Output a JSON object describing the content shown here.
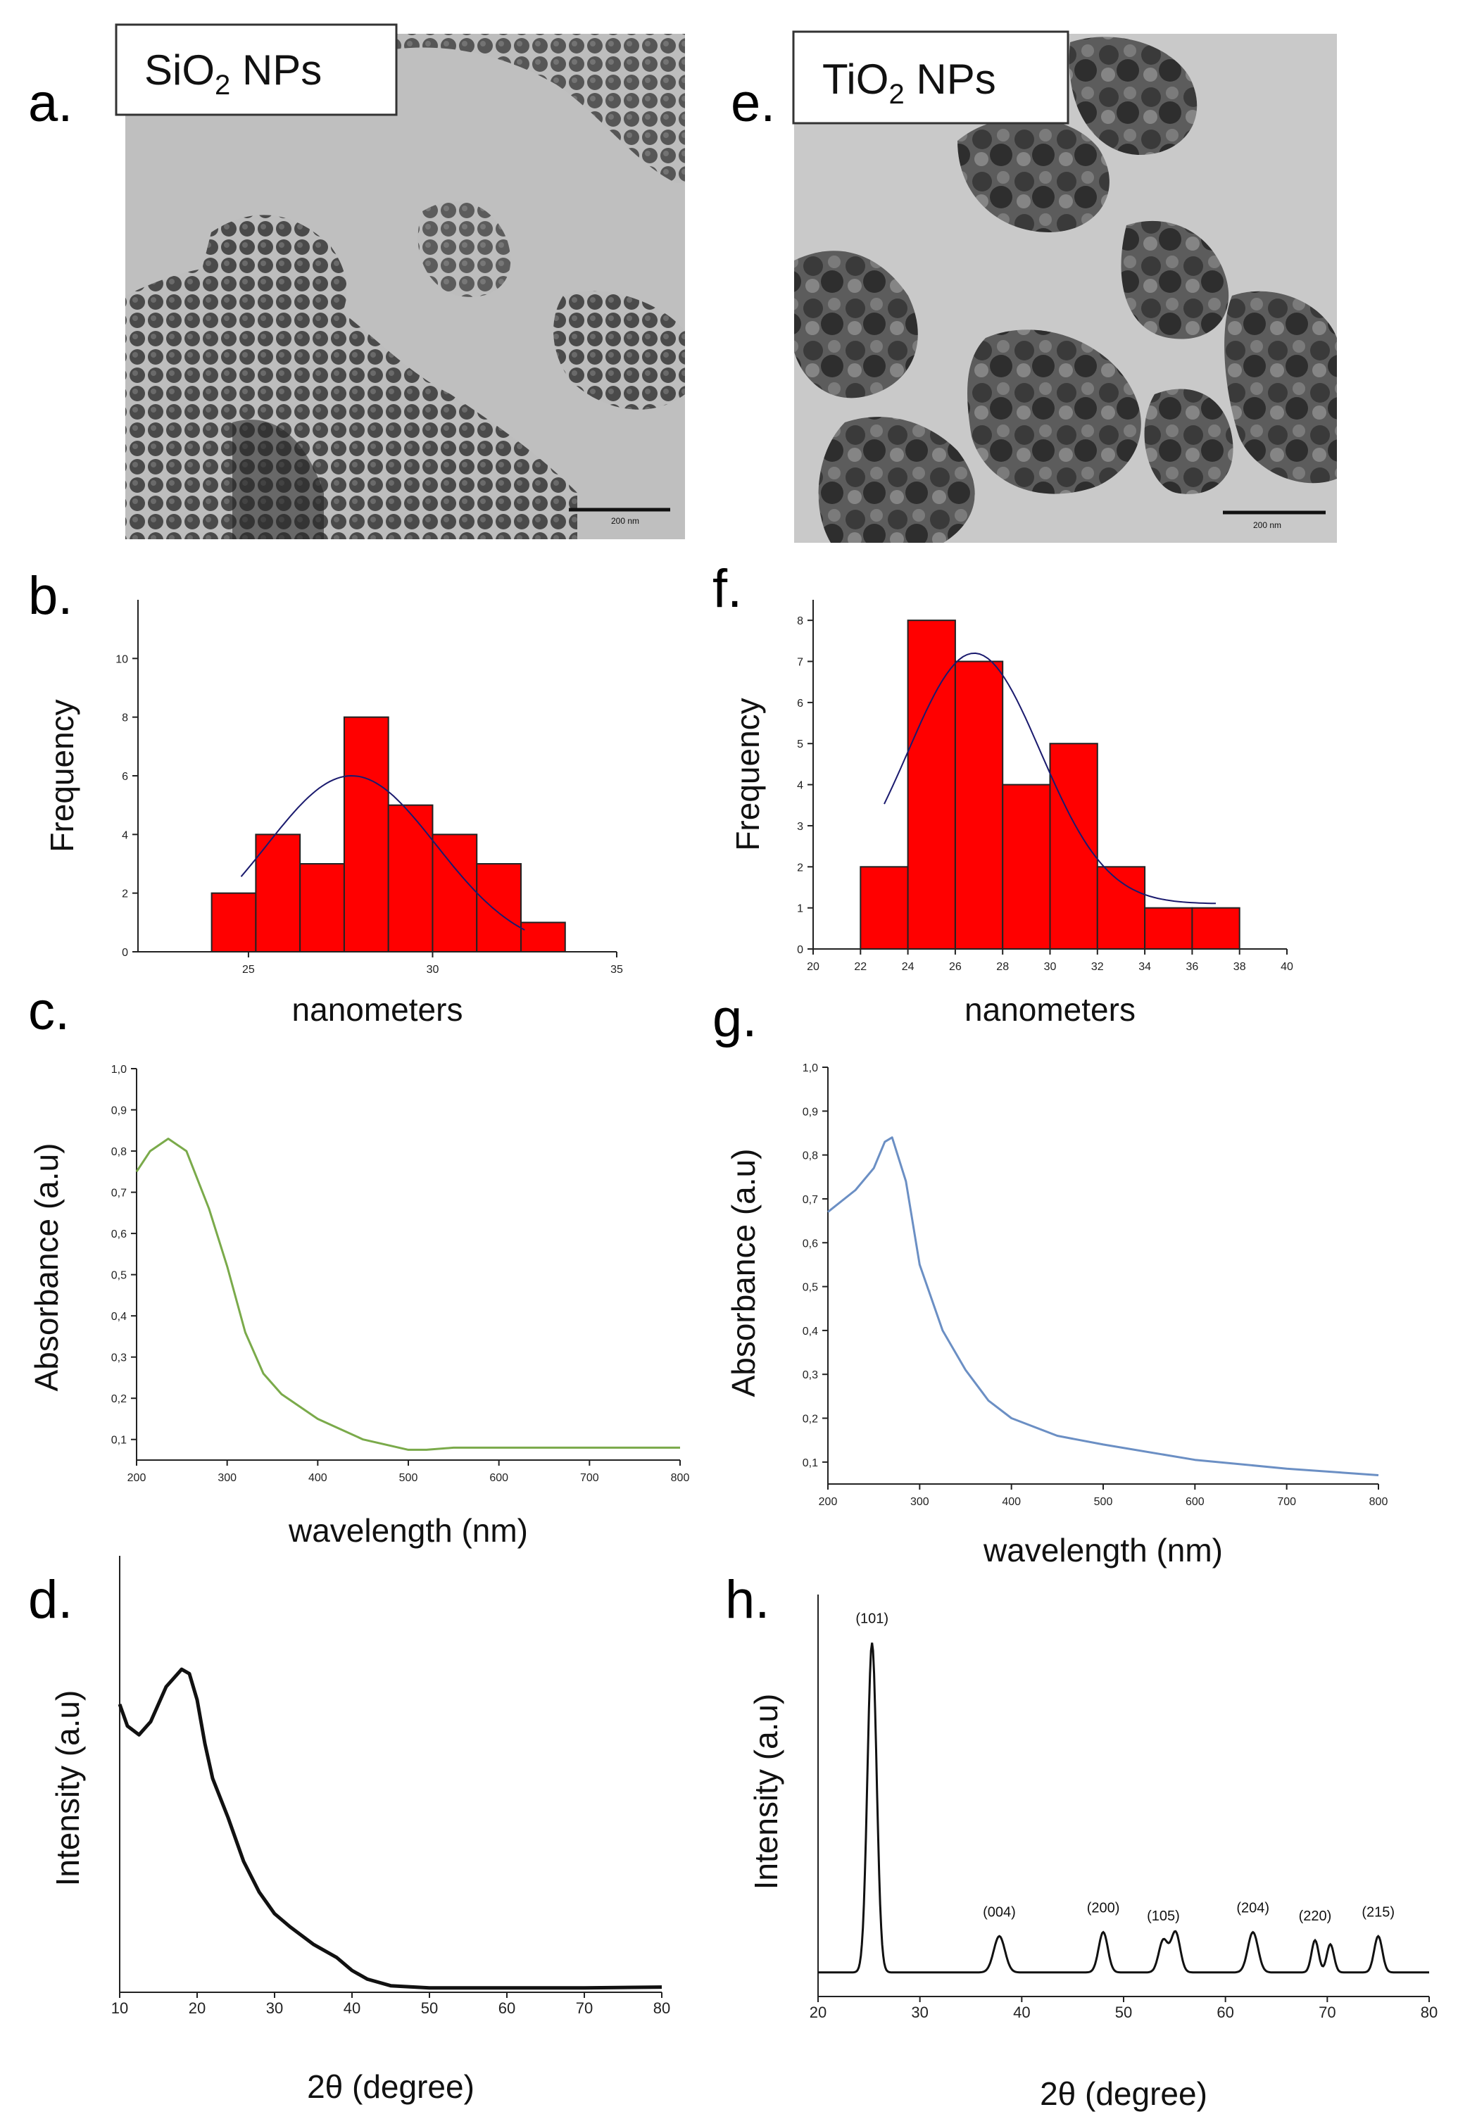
{
  "labels": {
    "a": "a.",
    "b": "b.",
    "c": "c.",
    "d": "d.",
    "e": "e.",
    "f": "f.",
    "g": "g.",
    "h": "h."
  },
  "tem": {
    "sio2": {
      "prefix": "SiO",
      "sub": "2",
      "suffix": " NPs",
      "scale": "200 nm"
    },
    "tio2": {
      "prefix": "TiO",
      "sub": "2",
      "suffix": " NPs",
      "scale": "200 nm"
    }
  },
  "colors": {
    "bar": "#ff0000",
    "fit": "#1a1a6e",
    "uv_sio2": "#7aaa4a",
    "uv_tio2": "#6b8fc4",
    "xrd": "#111111"
  },
  "chart_data": [
    {
      "id": "b",
      "type": "bar",
      "title": "",
      "xlabel": "nanometers",
      "ylabel": "Frequency",
      "xlim": [
        22,
        35
      ],
      "ylim": [
        0,
        12
      ],
      "xticks": [
        25,
        30,
        35
      ],
      "yticks": [
        0,
        2,
        4,
        6,
        8,
        10
      ],
      "bin_width": 1.2,
      "bins": [
        24.6,
        25.8,
        27.0,
        28.2,
        29.4,
        30.6,
        31.8
      ],
      "values": [
        2,
        4,
        3,
        8,
        5,
        4,
        3
      ],
      "extra_bin": {
        "x": 33.0,
        "value": 1
      },
      "fit": {
        "type": "normal",
        "mean": 27.8,
        "amplitude": 6.0,
        "sigma": 2.3,
        "range": [
          24.8,
          32.5
        ]
      }
    },
    {
      "id": "f",
      "type": "bar",
      "title": "",
      "xlabel": "nanometers",
      "ylabel": "Frequency",
      "xlim": [
        20,
        40
      ],
      "ylim": [
        0,
        8.5
      ],
      "xticks": [
        20,
        22,
        24,
        26,
        28,
        30,
        32,
        34,
        36,
        38,
        40
      ],
      "yticks": [
        0,
        1,
        2,
        3,
        4,
        5,
        6,
        7,
        8
      ],
      "bin_width": 2,
      "bins": [
        23,
        25,
        27,
        29,
        31,
        33,
        35,
        37
      ],
      "values": [
        2,
        8,
        7,
        4,
        5,
        2,
        1,
        1
      ],
      "fit": {
        "type": "normal",
        "mean": 26.8,
        "amplitude": 6.1,
        "sigma": 2.8,
        "baseline": 1.1,
        "range": [
          23,
          37
        ]
      }
    },
    {
      "id": "c",
      "type": "line",
      "title": "",
      "xlabel": "wavelength (nm)",
      "ylabel": "Absorbance (a.u)",
      "xlim": [
        200,
        800
      ],
      "ylim": [
        0.05,
        1.0
      ],
      "xticks": [
        200,
        300,
        400,
        500,
        600,
        700,
        800
      ],
      "yticks": [
        0.1,
        0.2,
        0.3,
        0.4,
        0.5,
        0.6,
        0.7,
        0.8,
        0.9,
        1.0
      ],
      "ytick_labels": [
        "0,1",
        "0,2",
        "0,3",
        "0,4",
        "0,5",
        "0,6",
        "0,7",
        "0,8",
        "0,9",
        "1,0"
      ],
      "series": [
        {
          "name": "SiO2",
          "x": [
            200,
            215,
            235,
            255,
            280,
            300,
            320,
            340,
            360,
            400,
            450,
            500,
            520,
            550,
            600,
            700,
            800
          ],
          "y": [
            0.75,
            0.8,
            0.83,
            0.8,
            0.66,
            0.52,
            0.36,
            0.26,
            0.21,
            0.15,
            0.1,
            0.075,
            0.075,
            0.08,
            0.08,
            0.08,
            0.08
          ]
        }
      ]
    },
    {
      "id": "g",
      "type": "line",
      "title": "",
      "xlabel": "wavelength (nm)",
      "ylabel": "Absorbance (a.u)",
      "xlim": [
        200,
        800
      ],
      "ylim": [
        0.05,
        1.0
      ],
      "xticks": [
        200,
        300,
        400,
        500,
        600,
        700,
        800
      ],
      "yticks": [
        0.1,
        0.2,
        0.3,
        0.4,
        0.5,
        0.6,
        0.7,
        0.8,
        0.9,
        1.0
      ],
      "ytick_labels": [
        "0,1",
        "0,2",
        "0,3",
        "0,4",
        "0,5",
        "0,6",
        "0,7",
        "0,8",
        "0,9",
        "1,0"
      ],
      "series": [
        {
          "name": "TiO2",
          "x": [
            200,
            230,
            250,
            262,
            270,
            285,
            300,
            325,
            350,
            375,
            400,
            450,
            500,
            600,
            700,
            800
          ],
          "y": [
            0.67,
            0.72,
            0.77,
            0.83,
            0.84,
            0.74,
            0.55,
            0.4,
            0.31,
            0.24,
            0.2,
            0.16,
            0.14,
            0.105,
            0.085,
            0.07
          ]
        }
      ]
    },
    {
      "id": "d",
      "type": "line",
      "title": "",
      "xlabel": "2θ (degree)",
      "ylabel": "Intensity (a.u)",
      "xlim": [
        10,
        80
      ],
      "ylim": [
        0,
        1.0
      ],
      "xticks": [
        10,
        20,
        30,
        40,
        50,
        60,
        70,
        80
      ],
      "series": [
        {
          "name": "SiO2",
          "x": [
            10,
            11,
            12.5,
            14,
            16,
            18,
            19,
            20,
            21,
            22,
            24,
            26,
            28,
            30,
            32,
            35,
            38,
            40,
            42,
            45,
            50,
            60,
            70,
            80
          ],
          "y": [
            0.66,
            0.61,
            0.59,
            0.62,
            0.7,
            0.74,
            0.73,
            0.67,
            0.57,
            0.49,
            0.4,
            0.3,
            0.23,
            0.18,
            0.15,
            0.11,
            0.08,
            0.05,
            0.03,
            0.015,
            0.01,
            0.01,
            0.01,
            0.012
          ]
        }
      ]
    },
    {
      "id": "h",
      "type": "line",
      "title": "",
      "xlabel": "2θ (degree)",
      "ylabel": "Intensity (a.u)",
      "xlim": [
        20,
        80
      ],
      "ylim": [
        0,
        1.0
      ],
      "xticks": [
        20,
        30,
        40,
        50,
        60,
        70,
        80
      ],
      "baseline": 0.06,
      "peaks": [
        {
          "x": 25.3,
          "height": 0.82,
          "width": 0.45,
          "label": "(101)"
        },
        {
          "x": 37.8,
          "height": 0.09,
          "width": 0.55,
          "label": "(004)"
        },
        {
          "x": 48.0,
          "height": 0.1,
          "width": 0.45,
          "label": "(200)"
        },
        {
          "x": 53.9,
          "height": 0.08,
          "width": 0.45,
          "label": "(105)"
        },
        {
          "x": 55.1,
          "height": 0.1,
          "width": 0.45,
          "label": ""
        },
        {
          "x": 62.7,
          "height": 0.1,
          "width": 0.5,
          "label": "(204)"
        },
        {
          "x": 68.8,
          "height": 0.08,
          "width": 0.35,
          "label": "(220)"
        },
        {
          "x": 70.3,
          "height": 0.07,
          "width": 0.35,
          "label": ""
        },
        {
          "x": 75.0,
          "height": 0.09,
          "width": 0.4,
          "label": "(215)"
        }
      ]
    }
  ]
}
